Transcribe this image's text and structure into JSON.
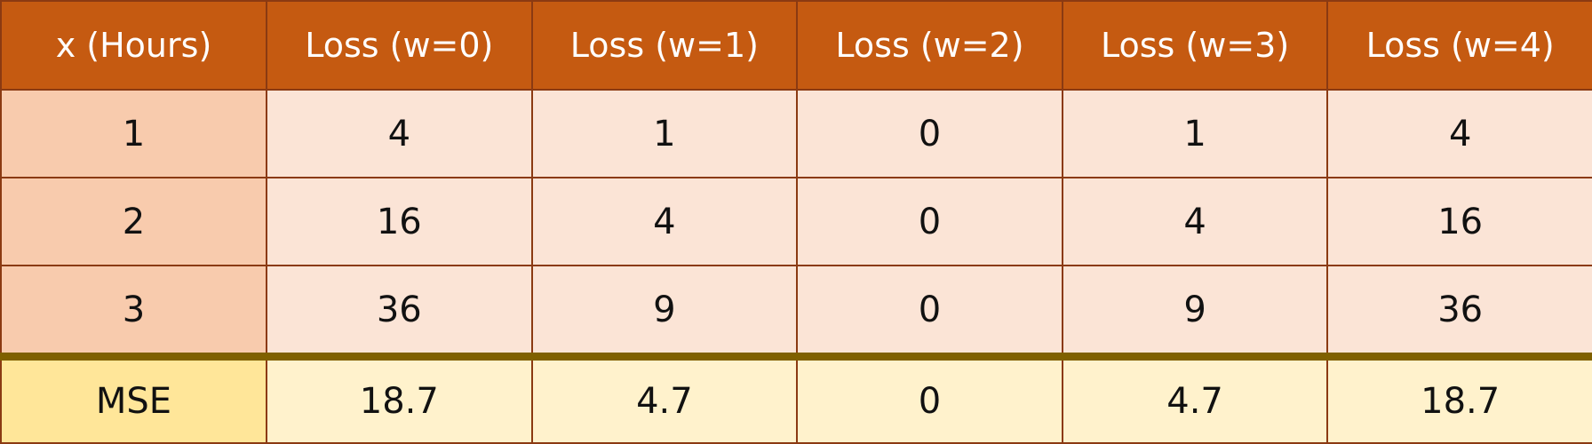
{
  "table": {
    "headers": [
      "x (Hours)",
      "Loss (w=0)",
      "Loss (w=1)",
      "Loss (w=2)",
      "Loss (w=3)",
      "Loss (w=4)"
    ],
    "rows": [
      [
        "1",
        "4",
        "1",
        "0",
        "1",
        "4"
      ],
      [
        "2",
        "16",
        "4",
        "0",
        "4",
        "16"
      ],
      [
        "3",
        "36",
        "9",
        "0",
        "9",
        "36"
      ]
    ],
    "summary": [
      "MSE",
      "18.7",
      "4.7",
      "0",
      "4.7",
      "18.7"
    ]
  },
  "colors": {
    "header_bg": "#c55a11",
    "row_key_bg": "#f8cbad",
    "row_bg": "#fbe4d6",
    "summary_key_bg": "#ffe699",
    "summary_bg": "#fff2cc",
    "summary_border": "#7f6000"
  }
}
